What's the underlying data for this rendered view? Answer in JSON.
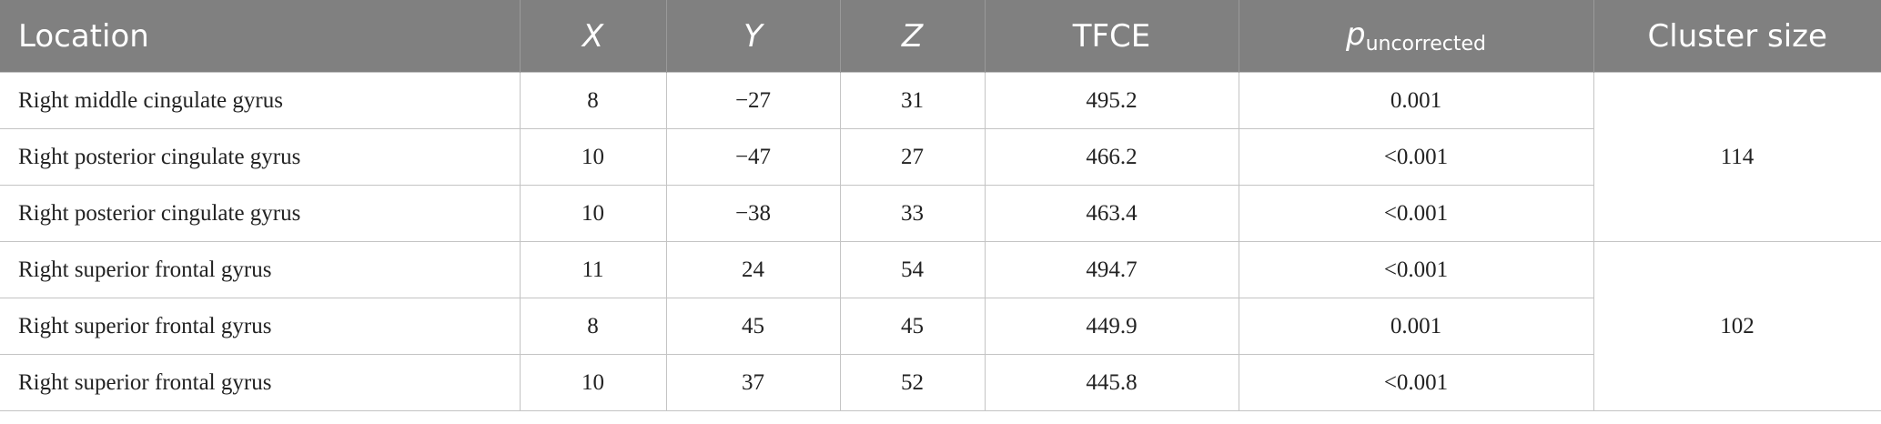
{
  "table": {
    "header": [
      "Location",
      "X",
      "Y",
      "Z",
      "TFCE",
      {
        "main": "p",
        "sub": "uncorrected"
      },
      "Cluster size"
    ],
    "groups": [
      {
        "cluster_size": "114",
        "rows": [
          [
            "Right middle cingulate gyrus",
            "8",
            "−27",
            "31",
            "495.2",
            "0.001"
          ],
          [
            "Right posterior cingulate gyrus",
            "10",
            "−47",
            "27",
            "466.2",
            "<0.001"
          ],
          [
            "Right posterior cingulate gyrus",
            "10",
            "−38",
            "33",
            "463.4",
            "<0.001"
          ]
        ]
      },
      {
        "cluster_size": "102",
        "rows": [
          [
            "Right superior frontal gyrus",
            "11",
            "24",
            "54",
            "494.7",
            "<0.001"
          ],
          [
            "Right superior frontal gyrus",
            "8",
            "45",
            "45",
            "449.9",
            "0.001"
          ],
          [
            "Right superior frontal gyrus",
            "10",
            "37",
            "52",
            "445.8",
            "<0.001"
          ]
        ]
      }
    ]
  }
}
